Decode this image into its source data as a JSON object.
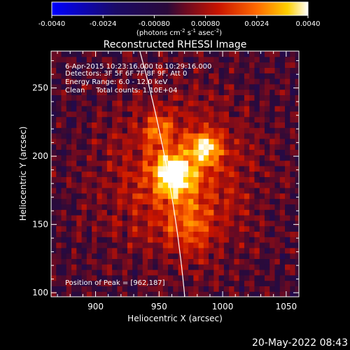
{
  "colorbar": {
    "ticks": [
      "-0.0040",
      "-0.0024",
      "-0.00080",
      "0.00080",
      "0.0024",
      "0.0040"
    ],
    "range": [
      -0.004,
      0.004
    ],
    "unit_label": "(photons cm",
    "unit_sup1": "-2",
    "unit_mid": " s",
    "unit_sup2": "-1",
    "unit_mid2": " asec",
    "unit_sup3": "-2",
    "unit_end": ")"
  },
  "chart_data": {
    "type": "heatmap",
    "title": "Reconstructed RHESSI Image",
    "xlabel": "Heliocentric X (arcsec)",
    "ylabel": "Heliocentric Y (arcsec)",
    "xlim": [
      865,
      1060
    ],
    "ylim": [
      97,
      277
    ],
    "xticks": [
      900,
      950,
      1000,
      1050
    ],
    "yticks": [
      100,
      150,
      200,
      250
    ],
    "sources": [
      {
        "x": 962,
        "y": 187,
        "sigma": 10,
        "amp": 1.0
      },
      {
        "x": 987,
        "y": 206,
        "sigma": 8,
        "amp": 0.75
      },
      {
        "x": 949,
        "y": 220,
        "sigma": 7,
        "amp": 0.45
      },
      {
        "x": 975,
        "y": 150,
        "sigma": 14,
        "amp": 0.3
      }
    ],
    "limb": {
      "cx": 0,
      "cy": 0,
      "r": 975
    },
    "annotations": [
      "6-Apr-2015 10:23:16.000 to 10:29:16.000",
      "Detectors: 3F 5F 6F 7F 8F 9F, Att 0",
      "Energy Range: 6.0 - 12.0 keV",
      "Clean     Total counts: 1.10E+04"
    ],
    "peak_label": "Position of Peak = [962,187]"
  },
  "footer": {
    "date": "20-May-2022 08:43"
  }
}
